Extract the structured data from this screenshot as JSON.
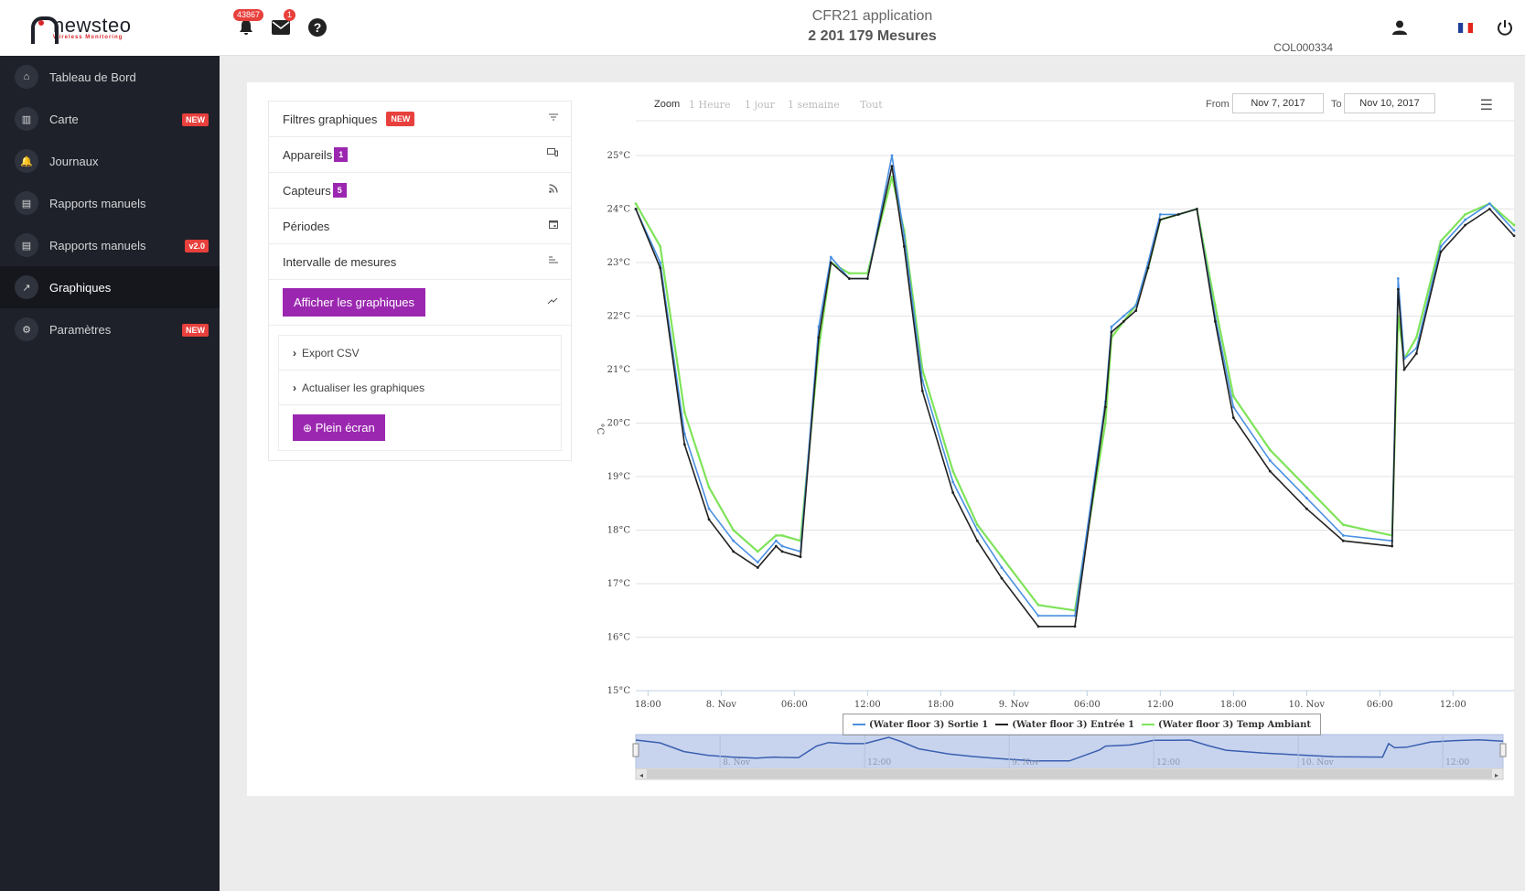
{
  "brand": {
    "name": "newsteo",
    "tagline": "Wireless Monitoring"
  },
  "sidebar": {
    "items": [
      {
        "label": "Tableau de Bord",
        "icon": "home-icon",
        "glyph": "⌂",
        "badge": ""
      },
      {
        "label": "Carte",
        "icon": "map-icon",
        "glyph": "▥",
        "badge": "NEW"
      },
      {
        "label": "Journaux",
        "icon": "bell-icon",
        "glyph": "🔔",
        "badge": ""
      },
      {
        "label": "Rapports manuels",
        "icon": "report-icon",
        "glyph": "▤",
        "badge": ""
      },
      {
        "label": "Rapports manuels",
        "icon": "report-icon",
        "glyph": "▤",
        "badge": "v2.0"
      },
      {
        "label": "Graphiques",
        "icon": "trend-icon",
        "glyph": "↗",
        "badge": "",
        "active": true
      },
      {
        "label": "Paramètres",
        "icon": "gear-icon",
        "glyph": "⚙",
        "badge": "NEW"
      }
    ]
  },
  "header": {
    "notifications_count": "43867",
    "messages_count": "1",
    "title": "CFR21 application",
    "subtitle": "2 201 179 Mesures",
    "user_code": "COL000334",
    "language": "FR"
  },
  "panel": {
    "filtres": {
      "label": "Filtres graphiques",
      "badge": "NEW"
    },
    "appareils": {
      "label": "Appareils",
      "count": "1"
    },
    "capteurs": {
      "label": "Capteurs",
      "count": "5"
    },
    "periodes": {
      "label": "Périodes"
    },
    "intervalle": {
      "label": "Intervalle de mesures"
    },
    "afficher": {
      "label": "Afficher les graphiques"
    },
    "export": {
      "label": "Export CSV"
    },
    "actualiser": {
      "label": "Actualiser les graphiques"
    },
    "plein_ecran": {
      "label": "Plein écran"
    }
  },
  "toolbar": {
    "zoom_label": "Zoom",
    "zoom_options": [
      "1 Heure",
      "1 jour",
      "1 semaine",
      "Tout"
    ],
    "from_label": "From",
    "from_value": "Nov 7, 2017",
    "to_label": "To",
    "to_value": "Nov 10, 2017"
  },
  "chart_data": {
    "type": "line",
    "ylabel": "°C",
    "ylim": [
      15,
      25
    ],
    "yticks": [
      "15°C",
      "16°C",
      "17°C",
      "18°C",
      "19°C",
      "20°C",
      "21°C",
      "22°C",
      "23°C",
      "24°C",
      "25°C"
    ],
    "xlim": [
      "2017-11-07 17:00",
      "2017-11-10 17:00"
    ],
    "xticks": [
      {
        "t": "2017-11-07 18:00",
        "label": "18:00"
      },
      {
        "t": "2017-11-08 00:00",
        "label": "8. Nov"
      },
      {
        "t": "2017-11-08 06:00",
        "label": "06:00"
      },
      {
        "t": "2017-11-08 12:00",
        "label": "12:00"
      },
      {
        "t": "2017-11-08 18:00",
        "label": "18:00"
      },
      {
        "t": "2017-11-09 00:00",
        "label": "9. Nov"
      },
      {
        "t": "2017-11-09 06:00",
        "label": "06:00"
      },
      {
        "t": "2017-11-09 12:00",
        "label": "12:00"
      },
      {
        "t": "2017-11-09 18:00",
        "label": "18:00"
      },
      {
        "t": "2017-11-10 00:00",
        "label": "10. Nov"
      },
      {
        "t": "2017-11-10 06:00",
        "label": "06:00"
      },
      {
        "t": "2017-11-10 12:00",
        "label": "12:00"
      }
    ],
    "navigator_ticks": [
      {
        "t": "2017-11-08 00:00",
        "label": "8. Nov"
      },
      {
        "t": "2017-11-08 12:00",
        "label": "12:00"
      },
      {
        "t": "2017-11-09 00:00",
        "label": "9. Nov"
      },
      {
        "t": "2017-11-09 12:00",
        "label": "12:00"
      },
      {
        "t": "2017-11-10 00:00",
        "label": "10. Nov"
      },
      {
        "t": "2017-11-10 12:00",
        "label": "12:00"
      }
    ],
    "x": [
      "2017-11-07 17:00",
      "2017-11-07 19:00",
      "2017-11-07 21:00",
      "2017-11-07 23:00",
      "2017-11-08 01:00",
      "2017-11-08 03:00",
      "2017-11-08 04:30",
      "2017-11-08 05:00",
      "2017-11-08 06:30",
      "2017-11-08 08:00",
      "2017-11-08 09:00",
      "2017-11-08 10:30",
      "2017-11-08 12:00",
      "2017-11-08 14:00",
      "2017-11-08 15:00",
      "2017-11-08 16:30",
      "2017-11-08 19:00",
      "2017-11-08 21:00",
      "2017-11-08 23:00",
      "2017-11-09 02:00",
      "2017-11-09 05:00",
      "2017-11-09 07:30",
      "2017-11-09 08:00",
      "2017-11-09 09:00",
      "2017-11-09 10:00",
      "2017-11-09 11:00",
      "2017-11-09 12:00",
      "2017-11-09 13:30",
      "2017-11-09 15:00",
      "2017-11-09 16:30",
      "2017-11-09 18:00",
      "2017-11-09 21:00",
      "2017-11-10 00:00",
      "2017-11-10 03:00",
      "2017-11-10 07:00",
      "2017-11-10 07:30",
      "2017-11-10 08:00",
      "2017-11-10 09:00",
      "2017-11-10 11:00",
      "2017-11-10 13:00",
      "2017-11-10 15:00",
      "2017-11-10 17:00"
    ],
    "series": [
      {
        "name": "(Water floor 3) Sortie 1",
        "color": "#4a90e2",
        "values": [
          24.0,
          23.0,
          19.8,
          18.4,
          17.8,
          17.4,
          17.8,
          17.7,
          17.6,
          21.8,
          23.1,
          22.7,
          22.7,
          25.0,
          23.5,
          20.8,
          18.9,
          18.0,
          17.3,
          16.4,
          16.4,
          20.4,
          21.8,
          22.0,
          22.2,
          23.0,
          23.9,
          23.9,
          24.0,
          22.0,
          20.3,
          19.3,
          18.6,
          17.9,
          17.8,
          22.7,
          21.2,
          21.4,
          23.3,
          23.8,
          24.1,
          23.6
        ]
      },
      {
        "name": "(Water floor 3) Entrée 1",
        "color": "#222222",
        "values": [
          24.0,
          22.9,
          19.6,
          18.2,
          17.6,
          17.3,
          17.7,
          17.6,
          17.5,
          21.6,
          23.0,
          22.7,
          22.7,
          24.8,
          23.3,
          20.6,
          18.7,
          17.8,
          17.1,
          16.2,
          16.2,
          20.3,
          21.7,
          21.9,
          22.1,
          22.9,
          23.8,
          23.9,
          24.0,
          21.9,
          20.1,
          19.1,
          18.4,
          17.8,
          17.7,
          22.5,
          21.0,
          21.3,
          23.2,
          23.7,
          24.0,
          23.5
        ]
      },
      {
        "name": "(Water floor 3) Temp Ambiant",
        "color": "#7fe35a",
        "values": [
          24.1,
          23.3,
          20.2,
          18.8,
          18.0,
          17.6,
          17.9,
          17.9,
          17.8,
          21.4,
          23.0,
          22.8,
          22.8,
          24.6,
          23.6,
          21.0,
          19.1,
          18.1,
          17.5,
          16.6,
          16.5,
          20.0,
          21.6,
          21.9,
          22.2,
          22.9,
          23.8,
          23.9,
          24.0,
          22.2,
          20.5,
          19.5,
          18.8,
          18.1,
          17.9,
          22.0,
          21.2,
          21.6,
          23.4,
          23.9,
          24.1,
          23.7
        ]
      }
    ],
    "legend": "bottom-center",
    "grid": true
  }
}
